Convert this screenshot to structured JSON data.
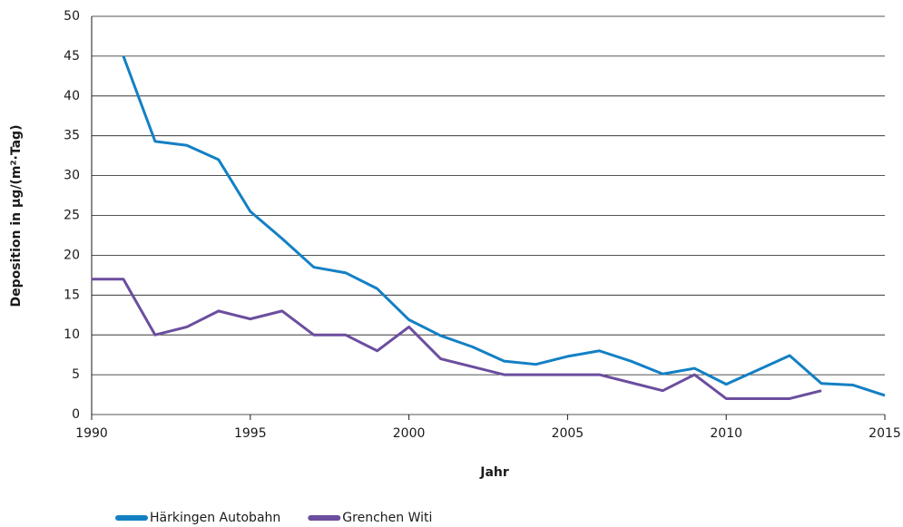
{
  "chart_data": {
    "type": "line",
    "y_label": "Deposition in µg/(m²·Tag)",
    "x_label": "Jahr",
    "x": [
      1990,
      1991,
      1992,
      1993,
      1994,
      1995,
      1996,
      1997,
      1998,
      1999,
      2000,
      2001,
      2002,
      2003,
      2004,
      2005,
      2006,
      2007,
      2008,
      2009,
      2010,
      2011,
      2012,
      2013,
      2014,
      2015
    ],
    "series": [
      {
        "name": "Härkingen Autobahn",
        "color": "#1380c4",
        "values": [
          null,
          45,
          34.3,
          33.8,
          32,
          25.5,
          22.1,
          18.5,
          17.8,
          15.8,
          11.9,
          9.9,
          8.5,
          6.7,
          6.3,
          7.3,
          8,
          6.7,
          5.1,
          5.8,
          3.8,
          5.6,
          7.4,
          3.9,
          3.7,
          2.4
        ]
      },
      {
        "name": "Grenchen Witi",
        "color": "#6b4e9e",
        "values": [
          17,
          17,
          10,
          11,
          13,
          12,
          13,
          10,
          10,
          8,
          11,
          7,
          6,
          5,
          5,
          5,
          5,
          4,
          3,
          5,
          2,
          2,
          2,
          3,
          null,
          null
        ]
      }
    ],
    "xlim": [
      1990,
      2015
    ],
    "xticks": [
      1990,
      1995,
      2000,
      2005,
      2010,
      2015
    ],
    "ylim": [
      0,
      50
    ],
    "yticks": [
      0,
      5,
      10,
      15,
      20,
      25,
      30,
      35,
      40,
      45,
      50
    ],
    "grid": true,
    "legend": "bottom-left"
  }
}
